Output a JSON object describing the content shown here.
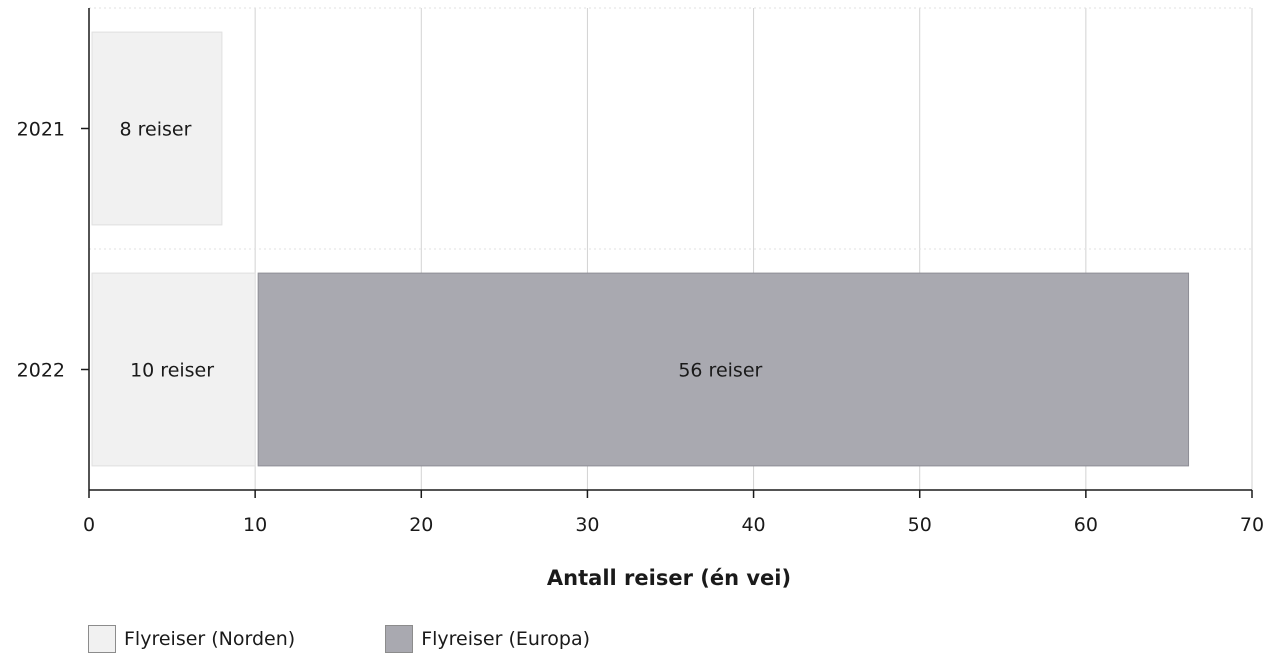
{
  "chart_data": {
    "type": "bar",
    "orientation": "horizontal",
    "stacked": true,
    "categories": [
      "2021",
      "2022"
    ],
    "series": [
      {
        "name": "Flyreiser (Norden)",
        "values": [
          8,
          10
        ],
        "labels": [
          "8 reiser",
          "10 reiser"
        ],
        "color": "#f1f1f1"
      },
      {
        "name": "Flyreiser (Europa)",
        "values": [
          0,
          56
        ],
        "labels": [
          "",
          "56 reiser"
        ],
        "color": "#a9a9b0"
      }
    ],
    "xlabel": "Antall reiser (én vei)",
    "ylabel": "",
    "xlim": [
      0,
      70
    ],
    "xticks": [
      0,
      10,
      20,
      30,
      40,
      50,
      60,
      70
    ],
    "grid": true,
    "legend_position": "bottom-left"
  }
}
